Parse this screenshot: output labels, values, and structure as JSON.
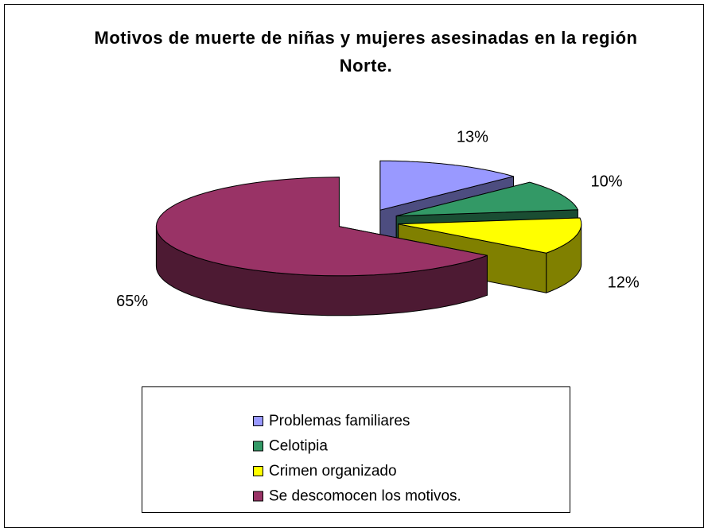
{
  "chart_data": {
    "type": "pie",
    "title": "Motivos de muerte de niñas y mujeres asesinadas en la región Norte.",
    "categories": [
      "Problemas familiares",
      "Celotipia",
      "Crimen organizado",
      "Se descomocen los motivos."
    ],
    "values": [
      13,
      10,
      12,
      65
    ],
    "value_labels": [
      "13%",
      "10%",
      "12%",
      "65%"
    ],
    "colors": [
      "#9999ff",
      "#339966",
      "#ffff00",
      "#993366"
    ],
    "legend": "bottom"
  }
}
